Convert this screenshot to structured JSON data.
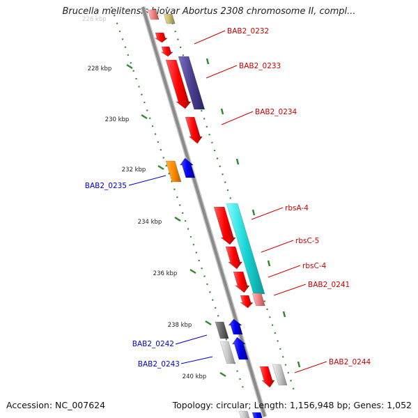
{
  "title": "Brucella melitensis biovar Abortus 2308 chromosome II, compl...",
  "footer": {
    "accession": "Accession: NC_007624",
    "stats": "Topology: circular; Length: 1,156,948 bp; Genes: 1,052"
  },
  "colors": {
    "backbone": "#8a8a8a",
    "tick": "#2e8b2e",
    "forward_label": "#cc0000",
    "reverse_label": "#0000cc"
  },
  "ticks": [
    {
      "label": "228 kbp"
    },
    {
      "label": "230 kbp"
    },
    {
      "label": "232 kbp"
    },
    {
      "label": "234 kbp"
    },
    {
      "label": "236 kbp"
    },
    {
      "label": "238 kbp"
    },
    {
      "label": "240 kbp"
    }
  ],
  "gene_labels": [
    {
      "text": "BAB2_0232",
      "strand": "forward"
    },
    {
      "text": "BAB2_0233",
      "strand": "forward"
    },
    {
      "text": "BAB2_0234",
      "strand": "forward"
    },
    {
      "text": "BAB2_0235",
      "strand": "reverse"
    },
    {
      "text": "rbsA-4",
      "strand": "forward"
    },
    {
      "text": "rbsC-5",
      "strand": "forward"
    },
    {
      "text": "rbsC-4",
      "strand": "forward"
    },
    {
      "text": "BAB2_0241",
      "strand": "forward"
    },
    {
      "text": "BAB2_0242",
      "strand": "reverse"
    },
    {
      "text": "BAB2_0243",
      "strand": "reverse"
    },
    {
      "text": "BAB2_0244",
      "strand": "forward"
    }
  ]
}
